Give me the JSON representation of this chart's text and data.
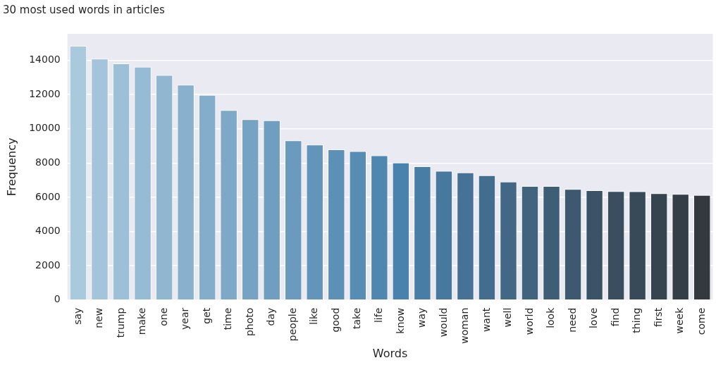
{
  "chart_data": {
    "type": "bar",
    "title": "30 most used words in articles",
    "xlabel": "Words",
    "ylabel": "Frequency",
    "categories": [
      "say",
      "new",
      "trump",
      "make",
      "one",
      "year",
      "get",
      "time",
      "photo",
      "day",
      "people",
      "like",
      "good",
      "take",
      "life",
      "know",
      "way",
      "would",
      "woman",
      "want",
      "well",
      "world",
      "look",
      "need",
      "love",
      "find",
      "thing",
      "first",
      "week",
      "come"
    ],
    "values": [
      14850,
      14100,
      13820,
      13630,
      13140,
      12580,
      11980,
      11090,
      10560,
      10500,
      9320,
      9080,
      8800,
      8690,
      8450,
      8030,
      7810,
      7540,
      7450,
      7290,
      6910,
      6660,
      6660,
      6480,
      6410,
      6360,
      6350,
      6230,
      6190,
      6130
    ],
    "colors": [
      "#a9c9dd",
      "#a3c4da",
      "#9cc0d7",
      "#96bbd4",
      "#90b6d0",
      "#89b1cd",
      "#83adca",
      "#7da8c7",
      "#76a3c4",
      "#709ec1",
      "#6a9abe",
      "#6395bb",
      "#5d90b7",
      "#578cb4",
      "#5087b1",
      "#4a82ae",
      "#487da6",
      "#47789e",
      "#457296",
      "#436d8e",
      "#426886",
      "#40637e",
      "#3e5e76",
      "#3d586f",
      "#3b5367",
      "#3a4e5f",
      "#384957",
      "#36444f",
      "#343e47",
      "#33393f"
    ],
    "ylim": [
      0,
      15550
    ],
    "yticks": [
      0,
      2000,
      4000,
      6000,
      8000,
      10000,
      12000,
      14000
    ],
    "grid": "y",
    "legend": false
  }
}
